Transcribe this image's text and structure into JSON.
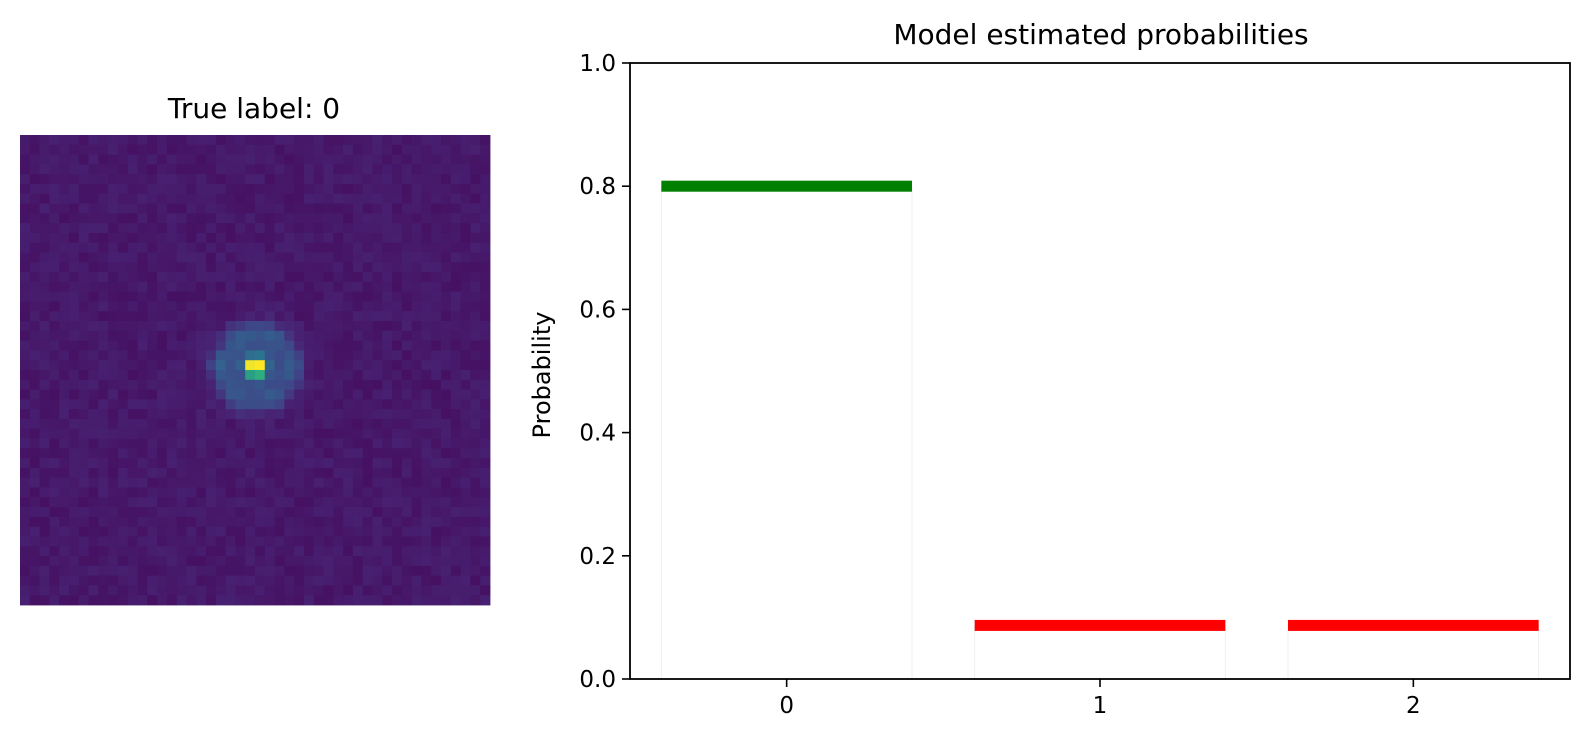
{
  "image_panel": {
    "title": "True label: 0",
    "colormap": "viridis",
    "grid_size": 48
  },
  "chart_data": {
    "type": "bar",
    "title": "Model estimated probabilities",
    "xlabel": "",
    "ylabel": "Probability",
    "ylim": [
      0,
      1.0
    ],
    "categories": [
      "0",
      "1",
      "2"
    ],
    "values": [
      0.8,
      0.087,
      0.087
    ],
    "bar_colors": [
      "#008000",
      "#ff0000",
      "#ff0000"
    ],
    "yticks": [
      "0.0",
      "0.2",
      "0.4",
      "0.6",
      "0.8",
      "1.0"
    ],
    "xticks": [
      "0",
      "1",
      "2"
    ],
    "grid": false
  }
}
